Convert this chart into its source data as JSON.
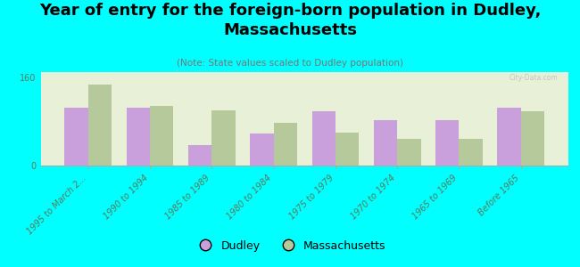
{
  "title": "Year of entry for the foreign-born population in Dudley,\nMassachusetts",
  "subtitle": "(Note: State values scaled to Dudley population)",
  "categories": [
    "1995 to March 2...",
    "1990 to 1994",
    "1985 to 1989",
    "1980 to 1984",
    "1975 to 1979",
    "1970 to 1974",
    "1965 to 1969",
    "Before 1965"
  ],
  "dudley_values": [
    105,
    105,
    38,
    58,
    98,
    82,
    82,
    105
  ],
  "mass_values": [
    148,
    108,
    100,
    78,
    60,
    48,
    48,
    98
  ],
  "dudley_color": "#c9a0dc",
  "mass_color": "#b5c99a",
  "background_color": "#00ffff",
  "plot_bg_color": "#e8f0d8",
  "ylim": [
    0,
    170
  ],
  "yticks": [
    0,
    160
  ],
  "bar_width": 0.38,
  "watermark": "City-Data.com",
  "legend_dudley": "Dudley",
  "legend_mass": "Massachusetts",
  "title_fontsize": 13,
  "subtitle_fontsize": 7.5,
  "tick_color": "#5a7a5a",
  "tick_fontsize": 7
}
